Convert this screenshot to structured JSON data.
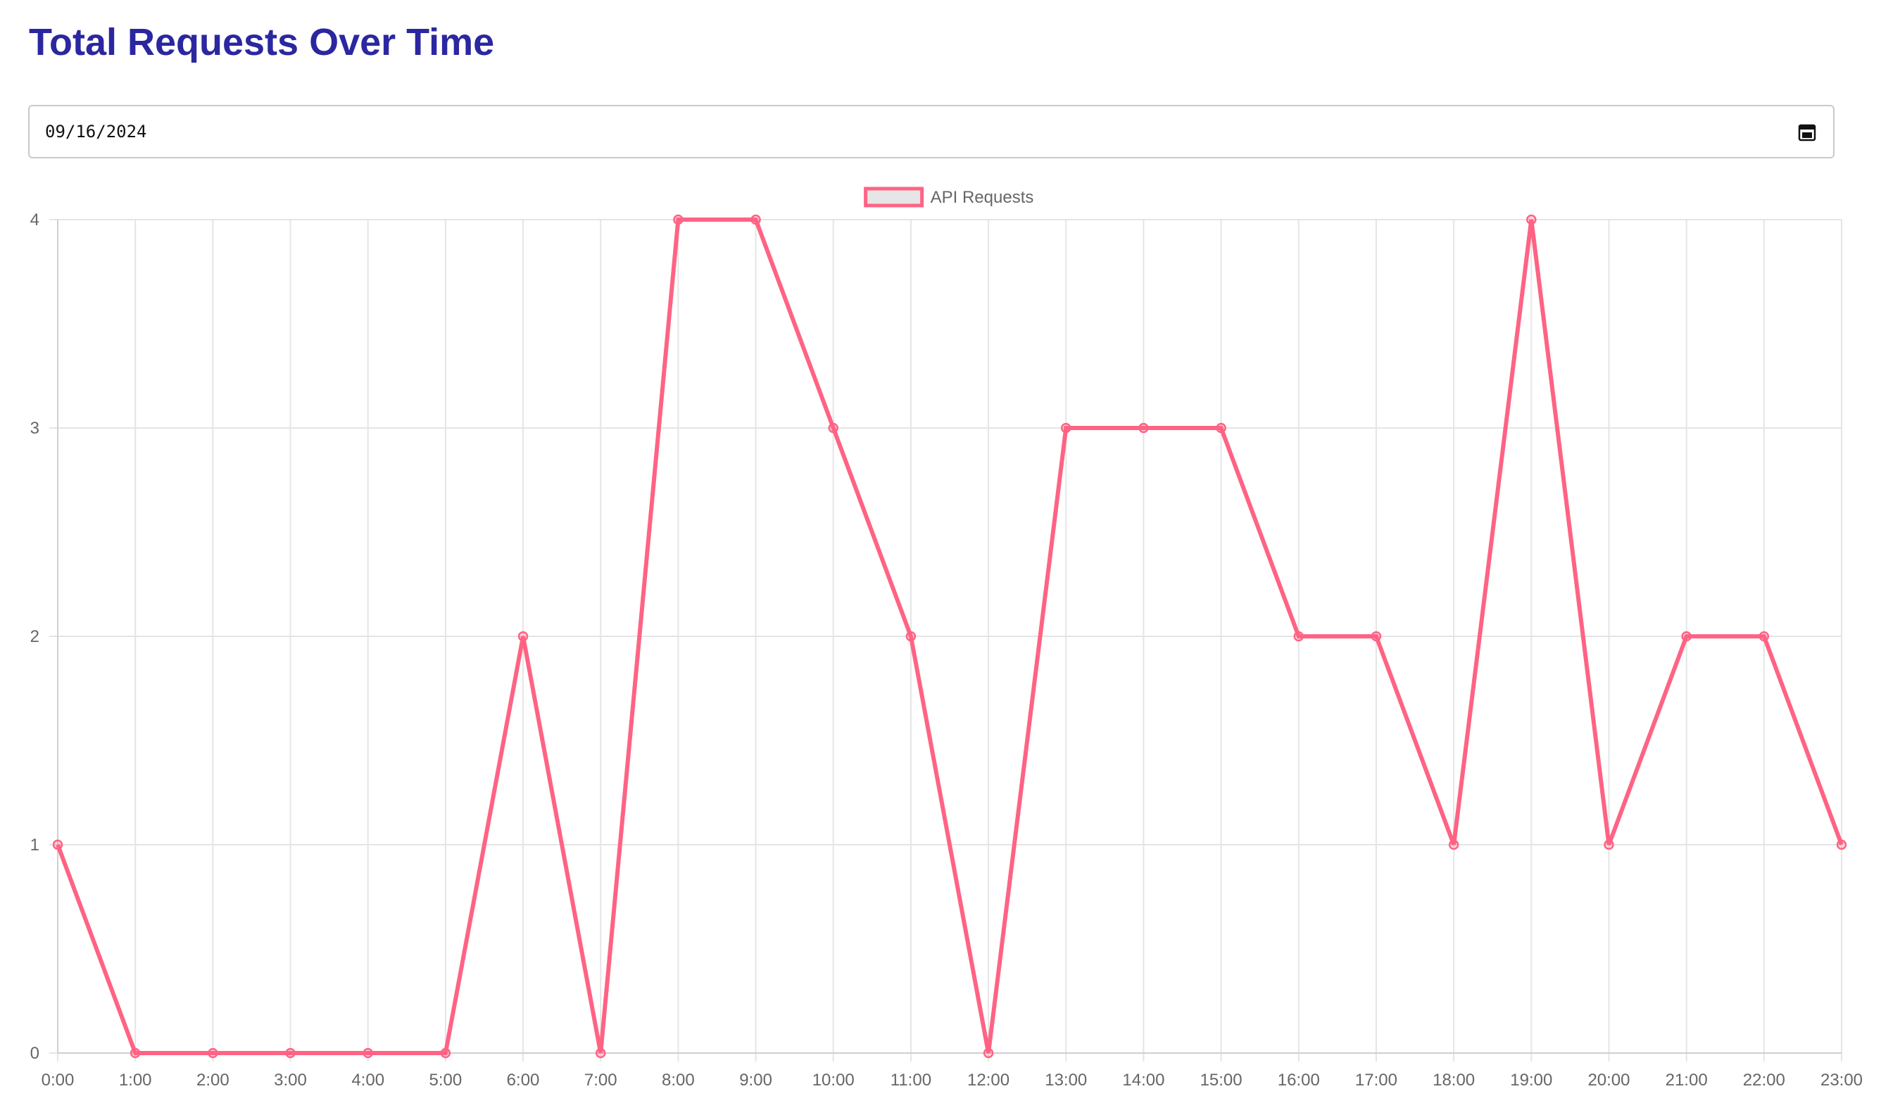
{
  "header": {
    "title": "Total Requests Over Time"
  },
  "date_picker": {
    "value": "2024-09-16",
    "display": "09/16/2024",
    "icon": "calendar-icon"
  },
  "colors": {
    "title": "#2b27a0",
    "series": "#ff6384",
    "legend_fill": "#e6e6e6",
    "grid": "#e5e5e5",
    "tick_text": "#666666"
  },
  "chart_data": {
    "type": "line",
    "x": [
      "0:00",
      "1:00",
      "2:00",
      "3:00",
      "4:00",
      "5:00",
      "6:00",
      "7:00",
      "8:00",
      "9:00",
      "10:00",
      "11:00",
      "12:00",
      "13:00",
      "14:00",
      "15:00",
      "16:00",
      "17:00",
      "18:00",
      "19:00",
      "20:00",
      "21:00",
      "22:00",
      "23:00"
    ],
    "series": [
      {
        "name": "API Requests",
        "values": [
          1,
          0,
          0,
          0,
          0,
          0,
          2,
          0,
          4,
          4,
          3,
          2,
          0,
          3,
          3,
          3,
          2,
          2,
          1,
          4,
          1,
          2,
          2,
          1
        ]
      }
    ],
    "yticks": [
      "0",
      "1",
      "2",
      "3",
      "4"
    ],
    "ylim": [
      0,
      4
    ],
    "grid": true,
    "legend": "top-center",
    "title": "",
    "xlabel": "",
    "ylabel": ""
  }
}
